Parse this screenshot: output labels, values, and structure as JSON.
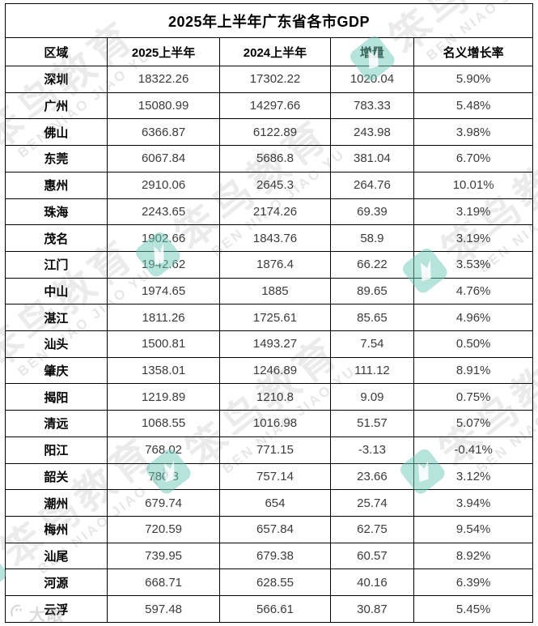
{
  "chart_data": {
    "type": "table",
    "title": "2025年上半年广东省各市GDP",
    "columns": [
      "区域",
      "2025上半年",
      "2024上半年",
      "增量",
      "名义增长率"
    ],
    "rows": [
      [
        "深圳",
        "18322.26",
        "17302.22",
        "1020.04",
        "5.90%"
      ],
      [
        "广州",
        "15080.99",
        "14297.66",
        "783.33",
        "5.48%"
      ],
      [
        "佛山",
        "6366.87",
        "6122.89",
        "243.98",
        "3.98%"
      ],
      [
        "东莞",
        "6067.84",
        "5686.8",
        "381.04",
        "6.70%"
      ],
      [
        "惠州",
        "2910.06",
        "2645.3",
        "264.76",
        "10.01%"
      ],
      [
        "珠海",
        "2243.65",
        "2174.26",
        "69.39",
        "3.19%"
      ],
      [
        "茂名",
        "1902.66",
        "1843.76",
        "58.9",
        "3.19%"
      ],
      [
        "江门",
        "1942.62",
        "1876.4",
        "66.22",
        "3.53%"
      ],
      [
        "中山",
        "1974.65",
        "1885",
        "89.65",
        "4.76%"
      ],
      [
        "湛江",
        "1811.26",
        "1725.61",
        "85.65",
        "4.96%"
      ],
      [
        "汕头",
        "1500.81",
        "1493.27",
        "7.54",
        "0.50%"
      ],
      [
        "肇庆",
        "1358.01",
        "1246.89",
        "111.12",
        "8.91%"
      ],
      [
        "揭阳",
        "1219.89",
        "1210.8",
        "9.09",
        "0.75%"
      ],
      [
        "清远",
        "1068.55",
        "1016.98",
        "51.57",
        "5.07%"
      ],
      [
        "阳江",
        "768.02",
        "771.15",
        "-3.13",
        "-0.41%"
      ],
      [
        "韶关",
        "780.8",
        "757.14",
        "23.66",
        "3.12%"
      ],
      [
        "潮州",
        "679.74",
        "654",
        "25.74",
        "3.94%"
      ],
      [
        "梅州",
        "720.59",
        "657.84",
        "62.75",
        "9.54%"
      ],
      [
        "汕尾",
        "739.95",
        "679.38",
        "60.57",
        "8.92%"
      ],
      [
        "河源",
        "668.71",
        "628.55",
        "40.16",
        "6.39%"
      ],
      [
        "云浮",
        "597.48",
        "566.61",
        "30.87",
        "5.45%"
      ]
    ]
  },
  "watermark": {
    "cn": "笨鸟教育",
    "en": "BEN NIAO JIAO YU",
    "logo_color": "#6fc7bc"
  },
  "camera_watermark": {
    "text": "大眼"
  }
}
